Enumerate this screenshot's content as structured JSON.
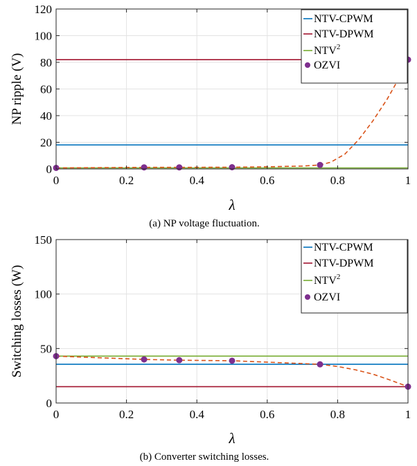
{
  "chart_data": [
    {
      "type": "line",
      "title": "",
      "caption": "(a)  NP voltage fluctuation.",
      "xlabel": "λ",
      "ylabel": "NP ripple (V)",
      "xlim": [
        0,
        1
      ],
      "ylim": [
        0,
        120
      ],
      "xticks": [
        0,
        0.2,
        0.4,
        0.6,
        0.8,
        1
      ],
      "xtick_labels": [
        "0",
        "0.2",
        "0.4",
        "0.6",
        "0.8",
        "1"
      ],
      "yticks": [
        0,
        20,
        40,
        60,
        80,
        100,
        120
      ],
      "ytick_labels": [
        "0",
        "20",
        "40",
        "60",
        "80",
        "100",
        "120"
      ],
      "grid": true,
      "legend_position": "top-right",
      "series": [
        {
          "name": "NTV-CPWM",
          "kind": "line",
          "color": "#0072BD",
          "x": [
            0,
            1
          ],
          "values": [
            18,
            18
          ]
        },
        {
          "name": "NTV-DPWM",
          "kind": "line",
          "color": "#A2142F",
          "x": [
            0,
            1
          ],
          "values": [
            82,
            82
          ]
        },
        {
          "name": "NTV",
          "name_superscript": "2",
          "kind": "line",
          "color": "#77AC30",
          "x": [
            0,
            1
          ],
          "values": [
            0.8,
            0.8
          ]
        },
        {
          "name": "OZVI",
          "kind": "marker",
          "color": "#7E2F8E",
          "x": [
            0,
            0.25,
            0.35,
            0.5,
            0.75,
            1
          ],
          "values": [
            0.8,
            1.2,
            1.2,
            1.3,
            3,
            82
          ]
        },
        {
          "kind": "dashed",
          "color": "#D95319",
          "x": [
            0,
            0.25,
            0.35,
            0.5,
            0.6,
            0.7,
            0.75,
            0.78,
            0.82,
            0.86,
            0.9,
            0.94,
            0.97,
            1
          ],
          "values": [
            0.8,
            1.2,
            1.2,
            1.3,
            1.6,
            2.2,
            3,
            5,
            11,
            22,
            36,
            52,
            66,
            82
          ]
        }
      ]
    },
    {
      "type": "line",
      "title": "",
      "caption": "(b)  Converter switching losses.",
      "xlabel": "λ",
      "ylabel": "Switching losses (W)",
      "xlim": [
        0,
        1
      ],
      "ylim": [
        0,
        150
      ],
      "xticks": [
        0,
        0.2,
        0.4,
        0.6,
        0.8,
        1
      ],
      "xtick_labels": [
        "0",
        "0.2",
        "0.4",
        "0.6",
        "0.8",
        "1"
      ],
      "yticks": [
        0,
        50,
        100,
        150
      ],
      "ytick_labels": [
        "0",
        "50",
        "100",
        "150"
      ],
      "grid": true,
      "legend_position": "top-right",
      "series": [
        {
          "name": "NTV-CPWM",
          "kind": "line",
          "color": "#0072BD",
          "x": [
            0,
            1
          ],
          "values": [
            35.5,
            35.5
          ]
        },
        {
          "name": "NTV-DPWM",
          "kind": "line",
          "color": "#A2142F",
          "x": [
            0,
            1
          ],
          "values": [
            15,
            15
          ]
        },
        {
          "name": "NTV",
          "name_superscript": "2",
          "kind": "line",
          "color": "#77AC30",
          "x": [
            0,
            1
          ],
          "values": [
            43,
            43
          ]
        },
        {
          "name": "OZVI",
          "kind": "marker",
          "color": "#7E2F8E",
          "x": [
            0,
            0.25,
            0.35,
            0.5,
            0.75,
            1
          ],
          "values": [
            43,
            40,
            39.3,
            38.8,
            35.5,
            15
          ]
        },
        {
          "kind": "dashed",
          "color": "#D95319",
          "x": [
            0,
            0.25,
            0.35,
            0.5,
            0.75,
            0.8,
            0.85,
            0.9,
            0.95,
            1
          ],
          "values": [
            43,
            40,
            39.3,
            38.8,
            35.5,
            33.5,
            30.5,
            26.5,
            21,
            15
          ]
        }
      ]
    }
  ]
}
